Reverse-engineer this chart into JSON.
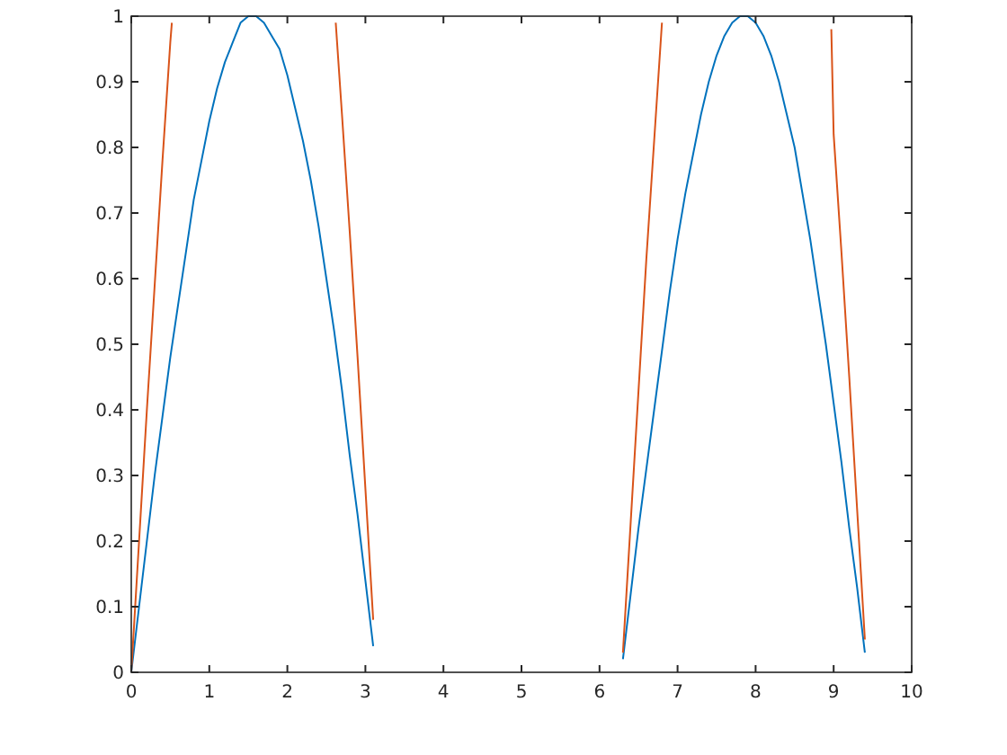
{
  "chart_data": {
    "type": "line",
    "xlim": [
      0,
      10
    ],
    "ylim": [
      0,
      1
    ],
    "xticks": [
      0,
      1,
      2,
      3,
      4,
      5,
      6,
      7,
      8,
      9,
      10
    ],
    "yticks": [
      0,
      0.1,
      0.2,
      0.3,
      0.4,
      0.5,
      0.6,
      0.7,
      0.8,
      0.9,
      1
    ],
    "grid": false,
    "marker": "none",
    "line_style": "solid",
    "series": [
      {
        "color": "#0072bd",
        "x": [
          0,
          0.1,
          0.2,
          0.3,
          0.4,
          0.5,
          0.6,
          0.7,
          0.8,
          0.9,
          1.0,
          1.1,
          1.2,
          1.3,
          1.4,
          1.5,
          1.6,
          1.7,
          1.8,
          1.9,
          2.0,
          2.1,
          2.2,
          2.3,
          2.4,
          2.5,
          2.6,
          2.7,
          2.8,
          2.9,
          3.0,
          3.1,
          3.2,
          6.3,
          6.4,
          6.5,
          6.6,
          6.7,
          6.8,
          6.9,
          7.0,
          7.1,
          7.2,
          7.3,
          7.4,
          7.5,
          7.6,
          7.7,
          7.8,
          7.9,
          8.0,
          8.1,
          8.2,
          8.3,
          8.4,
          8.5,
          8.6,
          8.7,
          8.8,
          8.9,
          9.0,
          9.1,
          9.2,
          9.3,
          9.4
        ],
        "values": [
          0,
          0.1,
          0.2,
          0.3,
          0.39,
          0.48,
          0.56,
          0.64,
          0.72,
          0.78,
          0.84,
          0.89,
          0.93,
          0.96,
          0.99,
          1.0,
          1.0,
          0.99,
          0.97,
          0.95,
          0.91,
          0.86,
          0.81,
          0.75,
          0.68,
          0.6,
          0.52,
          0.43,
          0.33,
          0.24,
          0.14,
          0.04,
          null,
          0.02,
          0.12,
          0.22,
          0.31,
          0.4,
          0.49,
          0.58,
          0.66,
          0.73,
          0.79,
          0.85,
          0.9,
          0.94,
          0.97,
          0.99,
          1.0,
          1.0,
          0.99,
          0.97,
          0.94,
          0.9,
          0.85,
          0.8,
          0.73,
          0.66,
          0.58,
          0.5,
          0.41,
          0.32,
          0.22,
          0.13,
          0.03
        ]
      },
      {
        "color": "#d95319",
        "x": [
          0,
          0.1,
          0.2,
          0.3,
          0.4,
          0.5,
          0.52,
          1.5,
          2.62,
          2.7,
          2.8,
          2.9,
          3.0,
          3.1,
          3.2,
          6.3,
          6.4,
          6.5,
          6.6,
          6.7,
          6.8,
          6.9,
          8.9,
          8.97,
          9.0,
          9.1,
          9.2,
          9.3,
          9.4
        ],
        "values": [
          0,
          0.2,
          0.4,
          0.59,
          0.78,
          0.96,
          0.99,
          null,
          0.99,
          0.85,
          0.67,
          0.48,
          0.28,
          0.08,
          null,
          0.03,
          0.23,
          0.43,
          0.63,
          0.81,
          0.99,
          null,
          null,
          0.98,
          0.82,
          0.64,
          0.45,
          0.25,
          0.05
        ]
      }
    ]
  }
}
